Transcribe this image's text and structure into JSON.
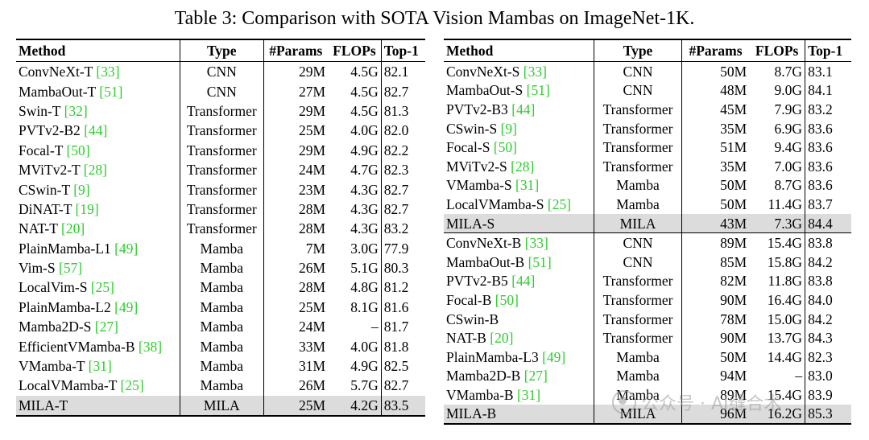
{
  "caption": "Table 3: Comparison with SOTA Vision Mambas on ImageNet-1K.",
  "headers": {
    "method": "Method",
    "type": "Type",
    "params": "#Params",
    "flops": "FLOPs",
    "top1": "Top-1"
  },
  "left_rows": [
    {
      "name": "ConvNeXt-T ",
      "cite": "[33]",
      "type": "CNN",
      "params": "29M",
      "flops": "4.5G",
      "top1": "82.1"
    },
    {
      "name": "MambaOut-T ",
      "cite": "[51]",
      "type": "CNN",
      "params": "27M",
      "flops": "4.5G",
      "top1": "82.7"
    },
    {
      "name": "Swin-T ",
      "cite": "[32]",
      "type": "Transformer",
      "params": "29M",
      "flops": "4.5G",
      "top1": "81.3"
    },
    {
      "name": "PVTv2-B2 ",
      "cite": "[44]",
      "type": "Transformer",
      "params": "25M",
      "flops": "4.0G",
      "top1": "82.0"
    },
    {
      "name": "Focal-T ",
      "cite": "[50]",
      "type": "Transformer",
      "params": "29M",
      "flops": "4.9G",
      "top1": "82.2"
    },
    {
      "name": "MViTv2-T ",
      "cite": "[28]",
      "type": "Transformer",
      "params": "24M",
      "flops": "4.7G",
      "top1": "82.3"
    },
    {
      "name": "CSwin-T ",
      "cite": "[9]",
      "type": "Transformer",
      "params": "23M",
      "flops": "4.3G",
      "top1": "82.7"
    },
    {
      "name": "DiNAT-T ",
      "cite": "[19]",
      "type": "Transformer",
      "params": "28M",
      "flops": "4.3G",
      "top1": "82.7"
    },
    {
      "name": "NAT-T ",
      "cite": "[20]",
      "type": "Transformer",
      "params": "28M",
      "flops": "4.3G",
      "top1": "83.2"
    },
    {
      "name": "PlainMamba-L1 ",
      "cite": "[49]",
      "type": "Mamba",
      "params": "7M",
      "flops": "3.0G",
      "top1": "77.9"
    },
    {
      "name": "Vim-S ",
      "cite": "[57]",
      "type": "Mamba",
      "params": "26M",
      "flops": "5.1G",
      "top1": "80.3"
    },
    {
      "name": "LocalVim-S ",
      "cite": "[25]",
      "type": "Mamba",
      "params": "28M",
      "flops": "4.8G",
      "top1": "81.2"
    },
    {
      "name": "PlainMamba-L2 ",
      "cite": "[49]",
      "type": "Mamba",
      "params": "25M",
      "flops": "8.1G",
      "top1": "81.6"
    },
    {
      "name": "Mamba2D-S ",
      "cite": "[27]",
      "type": "Mamba",
      "params": "24M",
      "flops": "–",
      "top1": "81.7"
    },
    {
      "name": "EfficientVMamba-B ",
      "cite": "[38]",
      "type": "Mamba",
      "params": "33M",
      "flops": "4.0G",
      "top1": "81.8"
    },
    {
      "name": "VMamba-T ",
      "cite": "[31]",
      "type": "Mamba",
      "params": "31M",
      "flops": "4.9G",
      "top1": "82.5"
    },
    {
      "name": "LocalVMamba-T ",
      "cite": "[25]",
      "type": "Mamba",
      "params": "26M",
      "flops": "5.7G",
      "top1": "82.7"
    },
    {
      "name": "MILA-T",
      "cite": "",
      "type": "MILA",
      "params": "25M",
      "flops": "4.2G",
      "top1": "83.5",
      "highlight": true
    }
  ],
  "right_rows": [
    {
      "name": "ConvNeXt-S ",
      "cite": "[33]",
      "type": "CNN",
      "params": "50M",
      "flops": "8.7G",
      "top1": "83.1"
    },
    {
      "name": "MambaOut-S ",
      "cite": "[51]",
      "type": "CNN",
      "params": "48M",
      "flops": "9.0G",
      "top1": "84.1"
    },
    {
      "name": "PVTv2-B3 ",
      "cite": "[44]",
      "type": "Transformer",
      "params": "45M",
      "flops": "7.9G",
      "top1": "83.2"
    },
    {
      "name": "CSwin-S ",
      "cite": "[9]",
      "type": "Transformer",
      "params": "35M",
      "flops": "6.9G",
      "top1": "83.6"
    },
    {
      "name": "Focal-S ",
      "cite": "[50]",
      "type": "Transformer",
      "params": "51M",
      "flops": "9.4G",
      "top1": "83.6"
    },
    {
      "name": "MViTv2-S ",
      "cite": "[28]",
      "type": "Transformer",
      "params": "35M",
      "flops": "7.0G",
      "top1": "83.6"
    },
    {
      "name": "VMamba-S ",
      "cite": "[31]",
      "type": "Mamba",
      "params": "50M",
      "flops": "8.7G",
      "top1": "83.6"
    },
    {
      "name": "LocalVMamba-S ",
      "cite": "[25]",
      "type": "Mamba",
      "params": "50M",
      "flops": "11.4G",
      "top1": "83.7"
    },
    {
      "name": "MILA-S",
      "cite": "",
      "type": "MILA",
      "params": "43M",
      "flops": "7.3G",
      "top1": "84.4",
      "highlight": true
    },
    {
      "name": "ConvNeXt-B ",
      "cite": "[33]",
      "type": "CNN",
      "params": "89M",
      "flops": "15.4G",
      "top1": "83.8",
      "group_start": true
    },
    {
      "name": "MambaOut-B ",
      "cite": "[51]",
      "type": "CNN",
      "params": "85M",
      "flops": "15.8G",
      "top1": "84.2"
    },
    {
      "name": "PVTv2-B5 ",
      "cite": "[44]",
      "type": "Transformer",
      "params": "82M",
      "flops": "11.8G",
      "top1": "83.8"
    },
    {
      "name": "Focal-B ",
      "cite": "[50]",
      "type": "Transformer",
      "params": "90M",
      "flops": "16.4G",
      "top1": "84.0"
    },
    {
      "name": "CSwin-B",
      "cite": "",
      "type": "Transformer",
      "params": "78M",
      "flops": "15.0G",
      "top1": "84.2"
    },
    {
      "name": "NAT-B ",
      "cite": "[20]",
      "type": "Transformer",
      "params": "90M",
      "flops": "13.7G",
      "top1": "84.3"
    },
    {
      "name": "PlainMamba-L3 ",
      "cite": "[49]",
      "type": "Mamba",
      "params": "50M",
      "flops": "14.4G",
      "top1": "82.3"
    },
    {
      "name": "Mamba2D-B ",
      "cite": "[27]",
      "type": "Mamba",
      "params": "94M",
      "flops": "–",
      "top1": "83.0"
    },
    {
      "name": "VMamba-B ",
      "cite": "[31]",
      "type": "Mamba",
      "params": "89M",
      "flops": "15.4G",
      "top1": "83.9"
    },
    {
      "name": "MILA-B",
      "cite": "",
      "type": "MILA",
      "params": "96M",
      "flops": "16.2G",
      "top1": "85.3",
      "highlight": true
    }
  ],
  "watermark": "公众号 · AI缝合术"
}
